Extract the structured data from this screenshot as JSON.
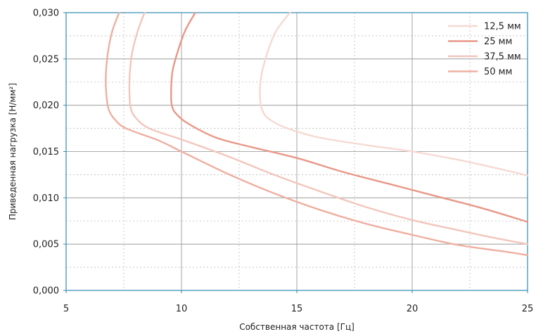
{
  "chart_data": {
    "type": "line",
    "xlabel": "Собственная частота [Гц]",
    "ylabel": "Приведенная нагрузка [Н/мм²]",
    "xlim": [
      5,
      25
    ],
    "ylim": [
      0,
      0.03
    ],
    "xticks": [
      "5",
      "10",
      "15",
      "20",
      "25"
    ],
    "yticks": [
      "0,000",
      "0,005",
      "0,010",
      "0,015",
      "0,020",
      "0,025",
      "0,030"
    ],
    "grid": "major solid, minor dashed",
    "legend_position": "top-right",
    "series": [
      {
        "name": "12,5 мм",
        "color": "#f6d9d2",
        "x": [
          14.7,
          14.1,
          13.7,
          13.45,
          13.4,
          13.5,
          13.8,
          14.6,
          16.0,
          18.0,
          20.0,
          22.0,
          24.0,
          25.0
        ],
        "y": [
          0.03,
          0.028,
          0.0255,
          0.023,
          0.021,
          0.0195,
          0.0185,
          0.0175,
          0.0165,
          0.0157,
          0.015,
          0.0141,
          0.013,
          0.0124
        ]
      },
      {
        "name": "25 мм",
        "color": "#e89888",
        "x": [
          10.6,
          10.15,
          9.8,
          9.6,
          9.55,
          9.6,
          9.8,
          10.3,
          11.5,
          13.0,
          15.0,
          17.0,
          19.0,
          21.0,
          23.0,
          25.0
        ],
        "y": [
          0.03,
          0.028,
          0.0255,
          0.0235,
          0.021,
          0.0198,
          0.019,
          0.018,
          0.0165,
          0.0155,
          0.0143,
          0.0128,
          0.0115,
          0.0102,
          0.0089,
          0.0074
        ]
      },
      {
        "name": "37,5 мм",
        "color": "#f2c6bc",
        "x": [
          8.4,
          8.1,
          7.85,
          7.75,
          7.75,
          7.8,
          8.0,
          8.6,
          10.0,
          12.0,
          14.0,
          16.0,
          18.0,
          20.0,
          22.0,
          23.5,
          25.0
        ],
        "y": [
          0.03,
          0.028,
          0.0255,
          0.023,
          0.021,
          0.0197,
          0.0187,
          0.0175,
          0.0163,
          0.0145,
          0.0125,
          0.0107,
          0.009,
          0.0076,
          0.0065,
          0.0057,
          0.005
        ]
      },
      {
        "name": "50 мм",
        "color": "#eeafa1",
        "x": [
          7.3,
          7.0,
          6.8,
          6.72,
          6.75,
          6.85,
          7.1,
          7.6,
          9.0,
          10.0,
          12.0,
          14.0,
          16.0,
          18.0,
          20.0,
          22.0,
          24.0,
          25.0
        ],
        "y": [
          0.03,
          0.028,
          0.0255,
          0.023,
          0.021,
          0.0195,
          0.0185,
          0.0175,
          0.0162,
          0.015,
          0.0126,
          0.0105,
          0.0087,
          0.0072,
          0.006,
          0.0049,
          0.0042,
          0.0038
        ]
      }
    ]
  }
}
